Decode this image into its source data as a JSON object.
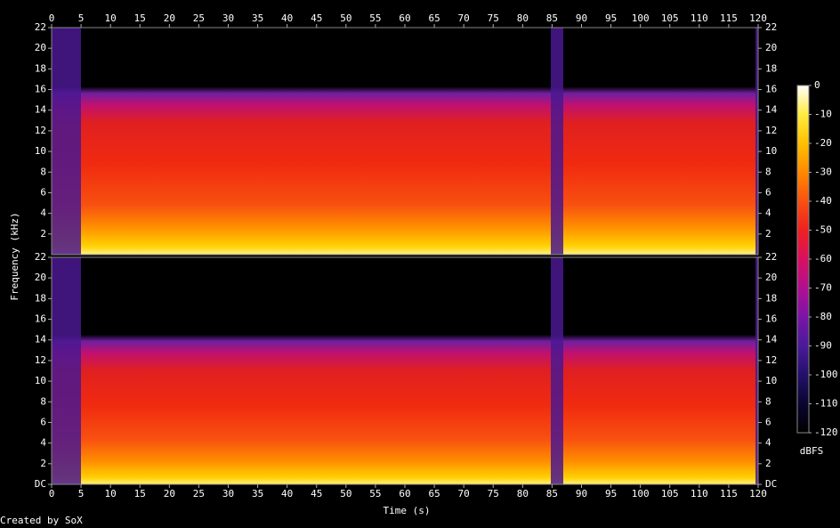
{
  "chart_data": {
    "type": "spectrogram",
    "xlabel": "Time (s)",
    "ylabel": "Frequency (kHz)",
    "xlim": [
      0,
      120
    ],
    "xticks": [
      0,
      5,
      10,
      15,
      20,
      25,
      30,
      35,
      40,
      45,
      50,
      55,
      60,
      65,
      70,
      75,
      80,
      85,
      90,
      95,
      100,
      105,
      110,
      115,
      120
    ],
    "channels": [
      {
        "ylim": [
          0,
          22
        ],
        "yticks": [
          2,
          4,
          6,
          8,
          10,
          12,
          14,
          16,
          18,
          20,
          22
        ]
      },
      {
        "ylim": [
          0,
          22
        ],
        "yticks": [
          {
            "value": 0,
            "label": "DC"
          },
          2,
          4,
          6,
          8,
          10,
          12,
          14,
          16,
          18,
          20,
          22
        ]
      }
    ],
    "colorbar": {
      "label": "dBFS",
      "zlim": [
        -120,
        0
      ],
      "zticks": [
        0,
        -10,
        -20,
        -30,
        -40,
        -50,
        -60,
        -70,
        -80,
        -90,
        -100,
        -110,
        -120
      ],
      "colors": [
        "#000000",
        "#0a0530",
        "#24106a",
        "#4a1a9a",
        "#7a14a8",
        "#b01090",
        "#d81060",
        "#f02020",
        "#f85010",
        "#ff8a00",
        "#ffc000",
        "#ffec40",
        "#ffffff"
      ]
    }
  },
  "footer": "Created by SoX"
}
